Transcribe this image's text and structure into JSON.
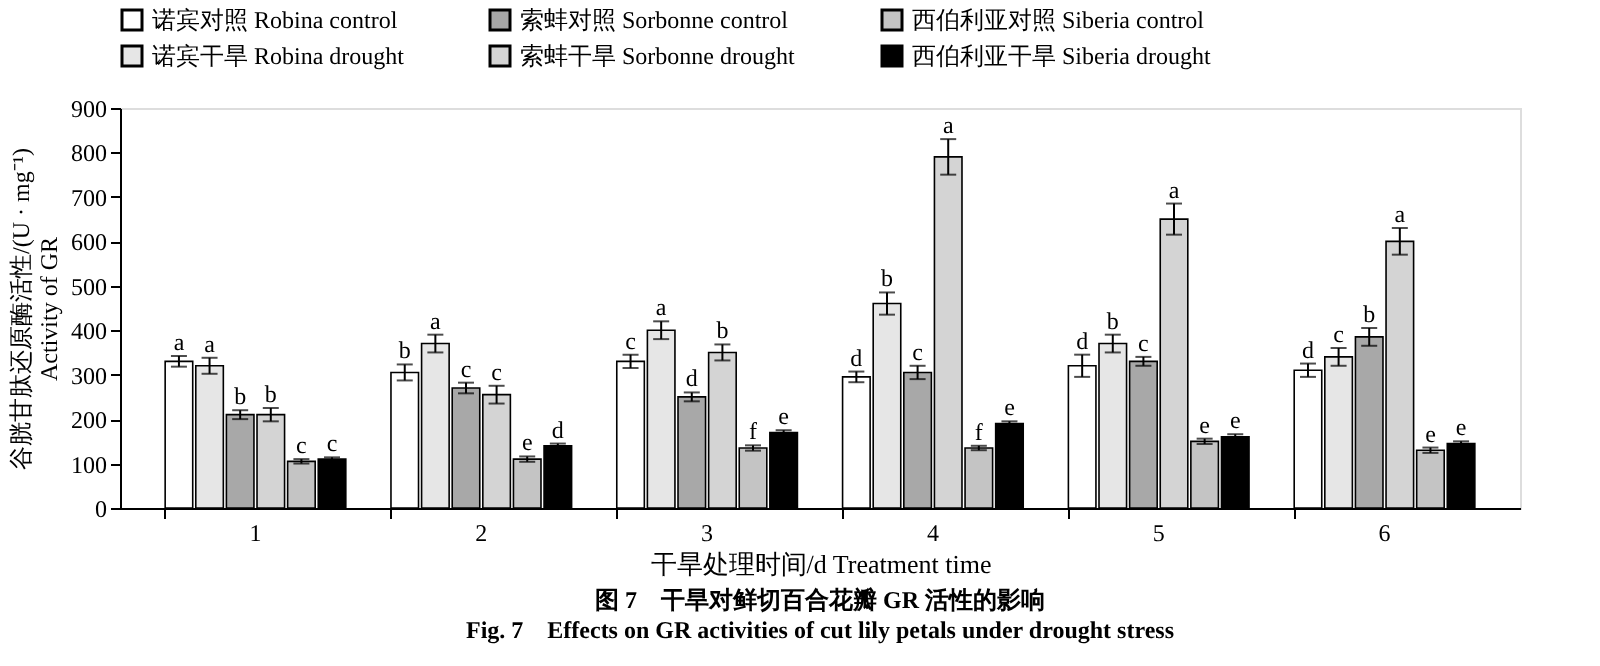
{
  "chart_data": {
    "type": "bar",
    "title": "图 7　干旱对鲜切百合花瓣 GR 活性的影响",
    "subtitle": "Fig. 7　Effects on GR activities of cut lily petals under drought stress",
    "xlabel": "干旱处理时间/d  Treatment time",
    "ylabel": "谷胱甘肽还原酶活性/(U · mg⁻¹)\nActivity of GR",
    "categories": [
      "1",
      "2",
      "3",
      "4",
      "5",
      "6"
    ],
    "series": [
      {
        "name": "诺宾对照 Robina control",
        "color": "#ffffff",
        "values": [
          330,
          305,
          330,
          295,
          320,
          310
        ],
        "errors": [
          12,
          18,
          15,
          12,
          25,
          15
        ],
        "value_labels": [
          "a",
          "b",
          "c",
          "d",
          "d",
          "d"
        ]
      },
      {
        "name": "诺宾干旱 Robina drought",
        "color": "#e6e6e6",
        "values": [
          320,
          370,
          400,
          460,
          370,
          340
        ],
        "errors": [
          18,
          20,
          20,
          25,
          20,
          20
        ],
        "value_labels": [
          "a",
          "a",
          "a",
          "b",
          "b",
          "c"
        ]
      },
      {
        "name": "索蚌对照 Sorbonne control",
        "color": "#a8a8a8",
        "values": [
          210,
          270,
          250,
          305,
          330,
          385
        ],
        "errors": [
          10,
          12,
          10,
          15,
          10,
          20
        ],
        "value_labels": [
          "b",
          "c",
          "d",
          "c",
          "c",
          "b"
        ]
      },
      {
        "name": "索蚌干旱 Sorbonne drought",
        "color": "#d4d4d4",
        "values": [
          210,
          255,
          350,
          790,
          650,
          600
        ],
        "errors": [
          15,
          20,
          18,
          40,
          35,
          30
        ],
        "value_labels": [
          "b",
          "c",
          "b",
          "a",
          "a",
          "a"
        ]
      },
      {
        "name": "西伯利亚对照 Siberia control",
        "color": "#c4c4c4",
        "values": [
          105,
          110,
          135,
          135,
          150,
          130
        ],
        "errors": [
          5,
          6,
          6,
          5,
          6,
          6
        ],
        "value_labels": [
          "c",
          "e",
          "f",
          "f",
          "e",
          "e"
        ]
      },
      {
        "name": "西伯利亚干旱 Siberia drought",
        "color": "#000000",
        "values": [
          110,
          140,
          170,
          190,
          160,
          145
        ],
        "errors": [
          4,
          5,
          5,
          5,
          6,
          5
        ],
        "value_labels": [
          "c",
          "d",
          "e",
          "e",
          "e",
          "e"
        ]
      }
    ],
    "ylim": [
      0,
      900
    ],
    "yticks": [
      0,
      100,
      200,
      300,
      400,
      500,
      600,
      700,
      800,
      900
    ],
    "grid": false,
    "legend": "top"
  }
}
